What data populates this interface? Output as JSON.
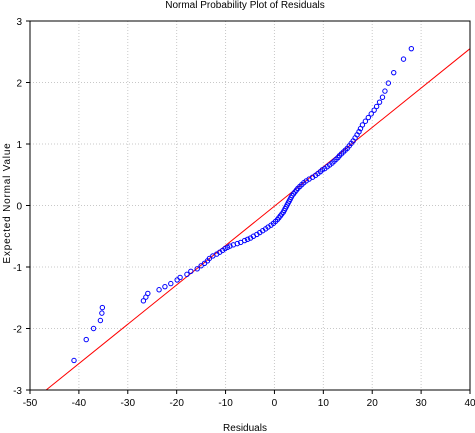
{
  "chart_data": {
    "type": "scatter",
    "title": "Normal Probability Plot of Residuals",
    "xlabel": "Residuals",
    "ylabel": "Expected Normal Value",
    "xlim": [
      -50,
      40
    ],
    "ylim": [
      -3,
      3
    ],
    "x_ticks": [
      "-50",
      "-40",
      "-30",
      "-20",
      "-10",
      "0",
      "10",
      "20",
      "30",
      "40"
    ],
    "y_ticks": [
      "-3",
      "-2",
      "-1",
      "0",
      "1",
      "2",
      "3"
    ],
    "grid": true,
    "colors": {
      "points": "#0000ff",
      "line": "#ff0000",
      "grid": "#c8c8c8",
      "frame": "#000000"
    },
    "reference_line": {
      "x": [
        -46.7,
        40.0
      ],
      "y": [
        -3.0,
        2.55
      ]
    },
    "series": [
      {
        "points": [
          [
            -41.0,
            -2.52
          ],
          [
            -38.5,
            -2.18
          ],
          [
            -37.0,
            -2.0
          ],
          [
            -35.6,
            -1.87
          ],
          [
            -35.3,
            -1.75
          ],
          [
            -35.2,
            -1.66
          ],
          [
            -26.8,
            -1.55
          ],
          [
            -26.3,
            -1.49
          ],
          [
            -25.9,
            -1.43
          ],
          [
            -23.6,
            -1.37
          ],
          [
            -22.4,
            -1.32
          ],
          [
            -21.2,
            -1.27
          ],
          [
            -19.9,
            -1.21
          ],
          [
            -19.3,
            -1.17
          ],
          [
            -17.9,
            -1.12
          ],
          [
            -17.1,
            -1.07
          ],
          [
            -15.8,
            -1.03
          ],
          [
            -15.0,
            -0.98
          ],
          [
            -14.3,
            -0.94
          ],
          [
            -13.7,
            -0.9
          ],
          [
            -13.3,
            -0.86
          ],
          [
            -12.6,
            -0.82
          ],
          [
            -11.8,
            -0.79
          ],
          [
            -11.2,
            -0.76
          ],
          [
            -10.6,
            -0.73
          ],
          [
            -10.1,
            -0.7
          ],
          [
            -9.6,
            -0.68
          ],
          [
            -9.1,
            -0.66
          ],
          [
            -8.4,
            -0.64
          ],
          [
            -7.6,
            -0.62
          ],
          [
            -6.9,
            -0.6
          ],
          [
            -6.1,
            -0.57
          ],
          [
            -5.5,
            -0.55
          ],
          [
            -4.9,
            -0.53
          ],
          [
            -4.3,
            -0.5
          ],
          [
            -3.6,
            -0.47
          ],
          [
            -3.0,
            -0.44
          ],
          [
            -2.4,
            -0.41
          ],
          [
            -1.8,
            -0.38
          ],
          [
            -1.3,
            -0.35
          ],
          [
            -0.7,
            -0.32
          ],
          [
            -0.2,
            -0.29
          ],
          [
            0.2,
            -0.26
          ],
          [
            0.6,
            -0.23
          ],
          [
            0.9,
            -0.2
          ],
          [
            1.2,
            -0.17
          ],
          [
            1.5,
            -0.14
          ],
          [
            1.8,
            -0.11
          ],
          [
            2.0,
            -0.08
          ],
          [
            2.2,
            -0.05
          ],
          [
            2.4,
            -0.02
          ],
          [
            2.6,
            0.01
          ],
          [
            2.8,
            0.04
          ],
          [
            3.0,
            0.07
          ],
          [
            3.2,
            0.1
          ],
          [
            3.4,
            0.13
          ],
          [
            3.6,
            0.16
          ],
          [
            3.9,
            0.19
          ],
          [
            4.2,
            0.22
          ],
          [
            4.5,
            0.25
          ],
          [
            4.8,
            0.28
          ],
          [
            5.2,
            0.31
          ],
          [
            5.6,
            0.34
          ],
          [
            6.0,
            0.37
          ],
          [
            6.5,
            0.4
          ],
          [
            7.1,
            0.43
          ],
          [
            7.8,
            0.46
          ],
          [
            8.4,
            0.49
          ],
          [
            8.9,
            0.52
          ],
          [
            9.4,
            0.55
          ],
          [
            9.8,
            0.58
          ],
          [
            10.3,
            0.6
          ],
          [
            10.8,
            0.63
          ],
          [
            11.3,
            0.66
          ],
          [
            11.8,
            0.69
          ],
          [
            12.2,
            0.72
          ],
          [
            12.6,
            0.75
          ],
          [
            13.0,
            0.78
          ],
          [
            13.3,
            0.81
          ],
          [
            13.7,
            0.84
          ],
          [
            14.1,
            0.87
          ],
          [
            14.5,
            0.9
          ],
          [
            14.9,
            0.93
          ],
          [
            15.3,
            0.97
          ],
          [
            15.7,
            1.01
          ],
          [
            16.1,
            1.05
          ],
          [
            16.5,
            1.1
          ],
          [
            16.9,
            1.15
          ],
          [
            17.3,
            1.2
          ],
          [
            17.6,
            1.25
          ],
          [
            18.0,
            1.31
          ],
          [
            18.6,
            1.37
          ],
          [
            19.2,
            1.43
          ],
          [
            19.8,
            1.49
          ],
          [
            20.4,
            1.55
          ],
          [
            20.9,
            1.61
          ],
          [
            21.5,
            1.68
          ],
          [
            22.1,
            1.76
          ],
          [
            22.6,
            1.86
          ],
          [
            23.3,
            1.99
          ],
          [
            24.4,
            2.16
          ],
          [
            26.4,
            2.38
          ],
          [
            28.0,
            2.55
          ]
        ]
      }
    ]
  }
}
